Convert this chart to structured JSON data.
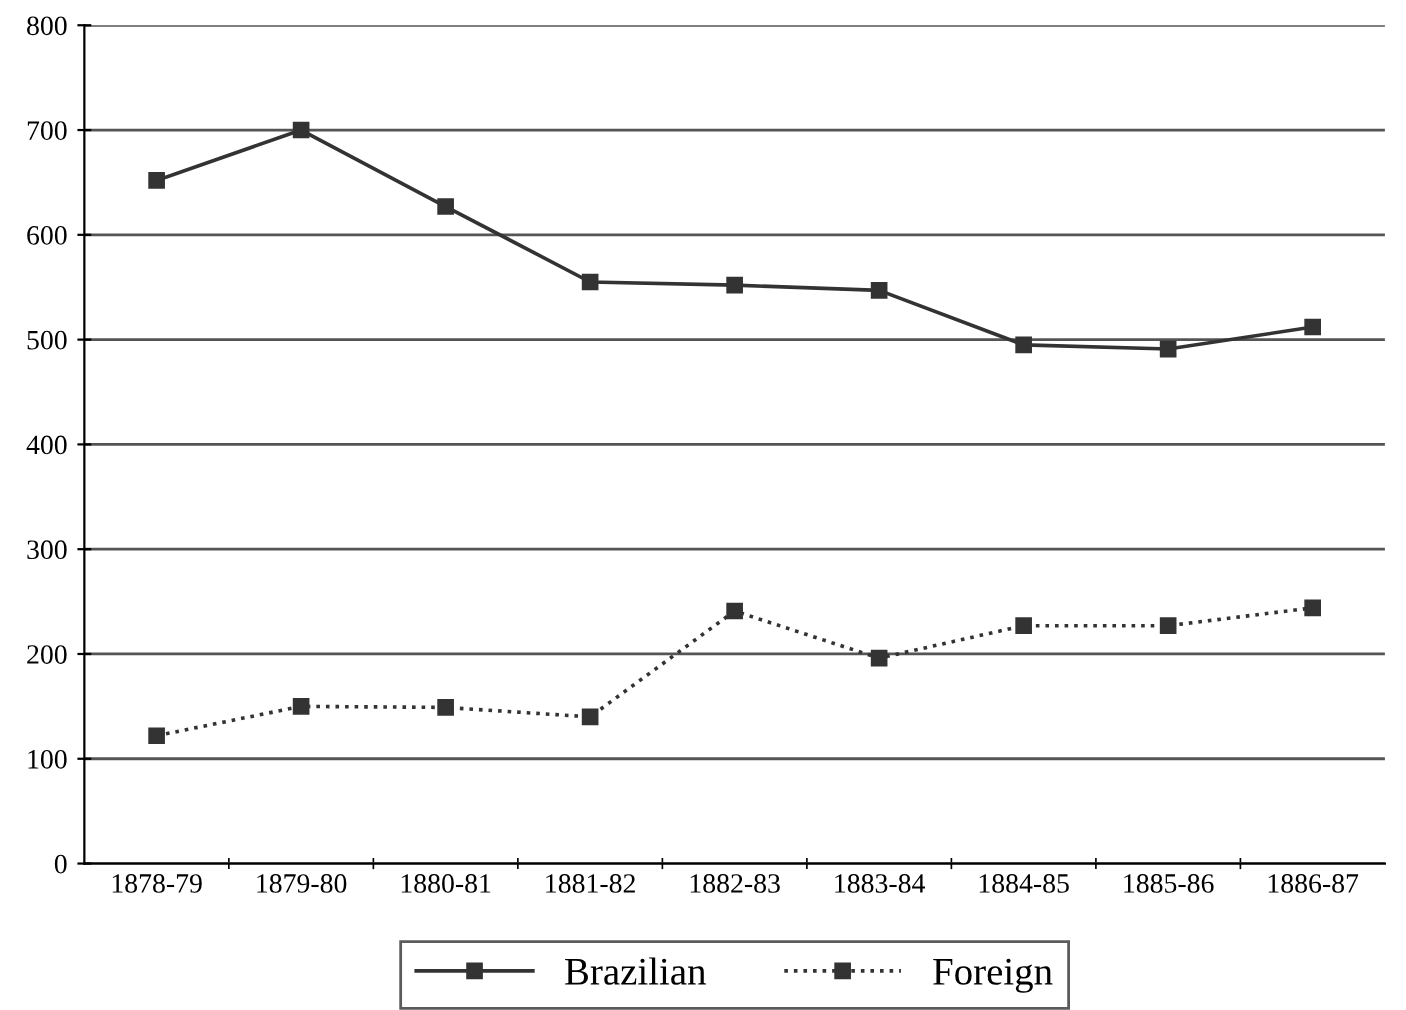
{
  "chart_data": {
    "type": "line",
    "categories": [
      "1878-79",
      "1879-80",
      "1880-81",
      "1881-82",
      "1882-83",
      "1883-84",
      "1884-85",
      "1885-86",
      "1886-87"
    ],
    "series": [
      {
        "name": "Brazilian",
        "color": "#333333",
        "line_style": "solid",
        "marker": "square",
        "values": [
          652,
          700,
          627,
          555,
          552,
          547,
          495,
          491,
          512
        ]
      },
      {
        "name": "Foreign",
        "color": "#333333",
        "line_style": "dotted",
        "marker": "square",
        "values": [
          122,
          150,
          149,
          140,
          241,
          196,
          227,
          227,
          244
        ]
      }
    ],
    "ylim": [
      0,
      800
    ],
    "yticks": [
      0,
      100,
      200,
      300,
      400,
      500,
      600,
      700,
      800
    ],
    "grid": "y",
    "legend": "bottom"
  }
}
